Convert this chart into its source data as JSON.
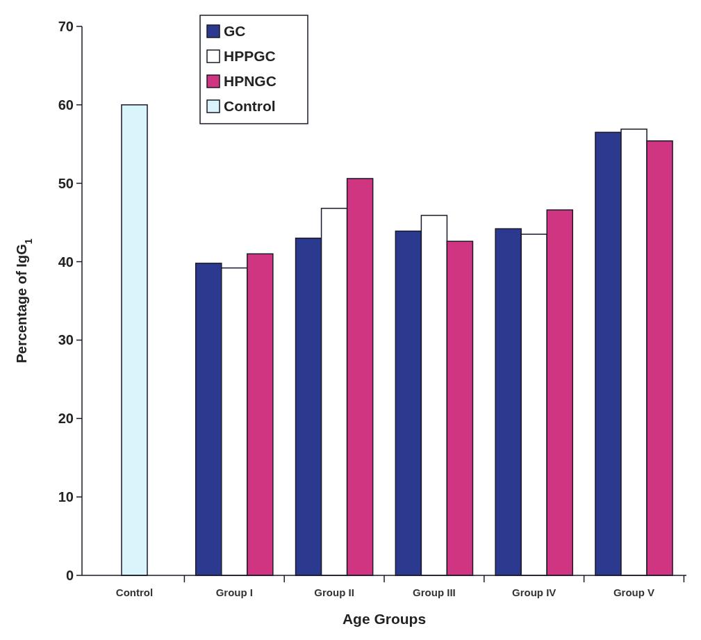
{
  "chart_data": {
    "type": "bar",
    "xlabel": "Age Groups",
    "ylabel": "Percentage of IgG$_{1}$",
    "categories": [
      "Control",
      "Group I",
      "Group II",
      "Group III",
      "Group IV",
      "Group V"
    ],
    "series": [
      {
        "name": "GC",
        "color": "#2b3a8f",
        "values": [
          null,
          39.8,
          43.0,
          43.9,
          44.2,
          56.5
        ]
      },
      {
        "name": "HPPGC",
        "color": "#ffffff",
        "values": [
          null,
          39.2,
          46.8,
          45.9,
          43.5,
          56.9
        ]
      },
      {
        "name": "HPNGC",
        "color": "#cf3580",
        "values": [
          null,
          41.0,
          50.6,
          42.6,
          46.6,
          55.4
        ]
      },
      {
        "name": "Control",
        "color": "#d9f4fb",
        "values": [
          60,
          null,
          null,
          null,
          null,
          null
        ]
      }
    ],
    "ylim": [
      0,
      70
    ],
    "yticks": [
      0,
      10,
      20,
      30,
      40,
      50,
      60,
      70
    ],
    "grid": false,
    "legend": "top left"
  }
}
